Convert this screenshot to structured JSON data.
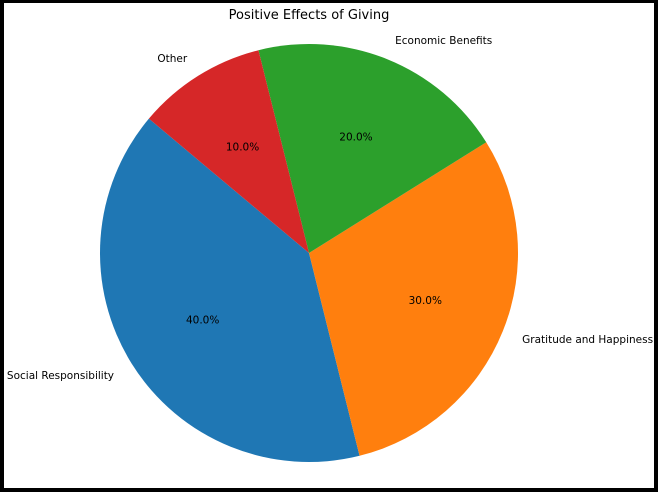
{
  "chart_data": {
    "type": "pie",
    "title": "Positive Effects of Giving",
    "categories": [
      "Social Responsibility",
      "Gratitude and Happiness",
      "Economic Benefits",
      "Other"
    ],
    "values": [
      40,
      30,
      20,
      10
    ],
    "labels": [
      "40.0%",
      "30.0%",
      "20.0%",
      "10.0%"
    ],
    "colors": [
      "#1f77b4",
      "#ff7f0e",
      "#2ca02c",
      "#d62728"
    ],
    "start_angle_deg": 140,
    "direction": "counterclockwise",
    "legend": "none",
    "grid": false
  }
}
